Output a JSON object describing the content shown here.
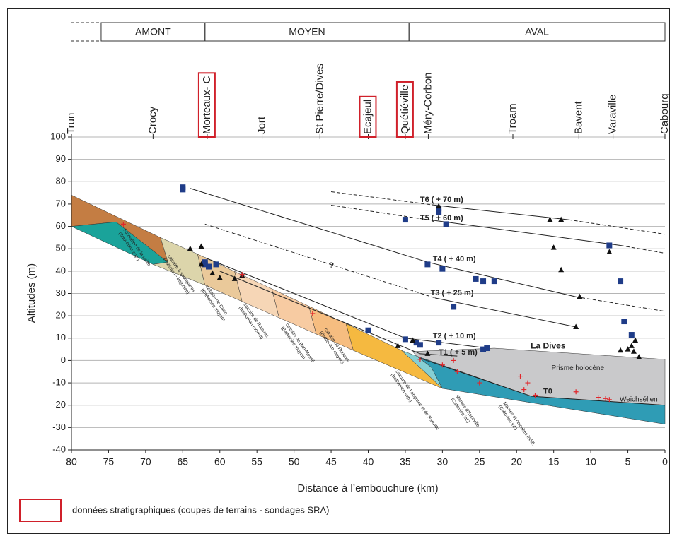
{
  "chart_data": {
    "type": "cross-section",
    "xlabel": "Distance à l’embouchure (km)",
    "ylabel": "Altitudes (m)",
    "xlim": [
      80,
      0
    ],
    "ylim": [
      -40,
      100
    ],
    "xticks": [
      80,
      75,
      70,
      65,
      60,
      55,
      50,
      45,
      40,
      35,
      30,
      25,
      20,
      15,
      10,
      5,
      0
    ],
    "yticks": [
      -40,
      -30,
      -20,
      -10,
      0,
      10,
      20,
      30,
      40,
      50,
      60,
      70,
      80,
      90,
      100
    ],
    "grid": true,
    "sections": [
      {
        "label": "AMONT",
        "from": 76,
        "to": 62
      },
      {
        "label": "MOYEN",
        "from": 62,
        "to": 34.5
      },
      {
        "label": "AVAL",
        "from": 34.5,
        "to": 0
      }
    ],
    "places": {
      "labels": [
        "Trun",
        "Crocy",
        "Morteaux- C",
        "Jort",
        "St Pierre/Dives",
        "Ecajeul",
        "Quétiéville",
        "Méry-Corbon",
        "Troarn",
        "Bavent",
        "Varaville",
        "Cabourg"
      ],
      "x": [
        80,
        69,
        61.7,
        54.3,
        46.5,
        40,
        35,
        31.9,
        20.5,
        11.6,
        7,
        0
      ],
      "stratigraphic_data": [
        false,
        false,
        true,
        false,
        false,
        true,
        true,
        false,
        false,
        false,
        false,
        false
      ]
    },
    "layers": [
      {
        "color": "#c47d43",
        "x": [
          80,
          80,
          74,
          67,
          68
        ],
        "y": [
          74,
          60,
          62,
          44,
          55
        ]
      },
      {
        "color": "#1aa39a",
        "x": [
          80,
          74,
          67,
          69
        ],
        "y": [
          60,
          62,
          44,
          43
        ]
      },
      {
        "color": "#dcd5ab",
        "x": [
          68,
          67,
          69,
          62,
          63
        ],
        "y": [
          55,
          44,
          43,
          33.7,
          47.6
        ]
      },
      {
        "color": "#eac99a",
        "x": [
          63,
          62,
          57,
          58
        ],
        "y": [
          47.6,
          33.7,
          26.4,
          39.8
        ]
      },
      {
        "color": "#f6d6b6",
        "x": [
          58,
          57,
          52,
          53
        ],
        "y": [
          39.8,
          26.4,
          19.1,
          32.1
        ]
      },
      {
        "color": "#f7cba2",
        "x": [
          53,
          52,
          47,
          48
        ],
        "y": [
          32.1,
          19.1,
          11.8,
          24.3
        ]
      },
      {
        "color": "#f6bd80",
        "x": [
          48,
          47,
          42,
          43
        ],
        "y": [
          24.3,
          11.8,
          4.5,
          16.5
        ]
      },
      {
        "color": "#f5b940",
        "x": [
          43,
          42,
          30,
          35.5
        ],
        "y": [
          16.5,
          4.5,
          -12.5,
          4.5
        ]
      },
      {
        "color": "#86cfd3",
        "x": [
          35.5,
          30,
          31.5,
          33.5
        ],
        "y": [
          4.5,
          -12.5,
          -3,
          2
        ]
      },
      {
        "color": "#2f9cb5",
        "x": [
          33.5,
          18,
          0,
          0,
          30,
          31.5
        ],
        "y": [
          2,
          -16,
          -20,
          -28.5,
          -12.5,
          -3
        ]
      },
      {
        "color": "#c9c9cb",
        "x": [
          34,
          23,
          0,
          0,
          18,
          33.5
        ],
        "y": [
          4,
          5.5,
          0.5,
          -20,
          -16,
          2
        ]
      }
    ],
    "terraces": [
      {
        "label": "T6 ( + 70 m)",
        "label_x": 33,
        "label_y": 71.8,
        "segments": [
          {
            "style": "dashed",
            "x": [
              45,
              31
            ],
            "y": [
              75.5,
              69.5
            ]
          },
          {
            "style": "solid",
            "x": [
              31,
              13
            ],
            "y": [
              69.5,
              63
            ]
          },
          {
            "style": "dashed",
            "x": [
              13,
              0
            ],
            "y": [
              63,
              56.5
            ]
          }
        ]
      },
      {
        "label": "T5 ( + 60 m)",
        "label_x": 33,
        "label_y": 63.7,
        "segments": [
          {
            "style": "dashed",
            "x": [
              45,
              33
            ],
            "y": [
              69.5,
              63.5
            ]
          },
          {
            "style": "solid",
            "x": [
              33,
              6
            ],
            "y": [
              63.5,
              51.5
            ]
          },
          {
            "style": "dashed",
            "x": [
              6,
              0
            ],
            "y": [
              51.5,
              48
            ]
          }
        ]
      },
      {
        "label": "T4 ( + 40 m)",
        "label_x": 31.3,
        "label_y": 45.3,
        "segments": [
          {
            "style": "solid",
            "x": [
              64,
              32,
              12
            ],
            "y": [
              77,
              44,
              28.5
            ]
          },
          {
            "style": "dashed",
            "x": [
              12,
              0
            ],
            "y": [
              28.5,
              22
            ]
          }
        ]
      },
      {
        "label": "T3 ( + 25 m)",
        "label_x": 31.6,
        "label_y": 30.2,
        "segments": [
          {
            "style": "dashed",
            "x": [
              62,
              31
            ],
            "y": [
              61,
              28
            ]
          },
          {
            "style": "solid",
            "x": [
              31,
              12
            ],
            "y": [
              28,
              15
            ]
          }
        ]
      },
      {
        "label": "T2 ( + 10 m)",
        "label_x": 31.3,
        "label_y": 10.9,
        "segments": [
          {
            "style": "solid",
            "x": [
              62,
              35,
              25
            ],
            "y": [
              46,
              10,
              6
            ]
          }
        ]
      },
      {
        "label": "T1 ( + 5 m)",
        "label_x": 30.5,
        "label_y": 3.6,
        "segments": [
          {
            "style": "solid",
            "x": [
              60,
              33,
              28
            ],
            "y": [
              40,
              3,
              2
            ]
          }
        ]
      },
      {
        "label": "T0",
        "label_x": 16.4,
        "label_y": -14,
        "segments": [
          {
            "style": "solid",
            "x": [
              33,
              18,
              0
            ],
            "y": [
              1,
              -16,
              -20
            ]
          }
        ]
      }
    ],
    "markers": [
      {
        "shape": "square",
        "color": "#1f3c88",
        "x": [
          65,
          65,
          62,
          61.5,
          62,
          60.5,
          40,
          35,
          33.5,
          33,
          30.5,
          35,
          30.5,
          30.5,
          29.5,
          32,
          30,
          28.5,
          25.5,
          24.5,
          23,
          24.5,
          24,
          7.5,
          6,
          5.5,
          4.5
        ],
        "y": [
          77.5,
          76.5,
          44,
          42,
          43,
          43,
          13.5,
          9.5,
          8,
          7,
          8,
          63,
          68,
          66.5,
          61,
          43,
          41,
          24,
          36.5,
          35.5,
          35.5,
          5,
          5.5,
          51.5,
          35.5,
          17.5,
          11.5
        ]
      },
      {
        "shape": "triangle",
        "color": "#111111",
        "x": [
          64,
          62.5,
          62.5,
          61,
          60,
          58,
          57,
          36,
          34,
          32,
          30.5,
          15.5,
          14,
          15,
          14,
          11.5,
          12,
          7.5,
          4,
          4.5,
          5,
          4.2,
          3.5,
          6
        ],
        "y": [
          50,
          51,
          43,
          39,
          37,
          36.5,
          38,
          6.5,
          9,
          3,
          69,
          63,
          63,
          50.5,
          40.5,
          28.5,
          15,
          48.5,
          9,
          6.5,
          5,
          4,
          1.5,
          4.5
        ]
      },
      {
        "shape": "cross",
        "color": "#e0262b",
        "x": [
          73,
          57,
          47.5,
          33,
          30,
          28.5,
          28,
          25,
          19.5,
          18.5,
          19,
          17.5,
          12,
          9,
          7.5,
          8
        ],
        "y": [
          61,
          38.5,
          21,
          0.5,
          -2,
          0,
          -5,
          -10,
          -7,
          -10,
          -13,
          -15.5,
          -14,
          -16.5,
          -17.5,
          -17
        ]
      }
    ],
    "formation_labels": [
      {
        "text": [
          "Formation de la Laize",
          "(Briovérien sup.)"
        ],
        "x": 72.9,
        "y": 58.7
      },
      {
        "text": [
          "calcaire à spongiaires",
          "(Aalénien - Bajocien)"
        ],
        "x": 66.9,
        "y": 47
      },
      {
        "text": [
          "calcaire de Caen",
          "(Bathonien moyen)"
        ],
        "x": 61.8,
        "y": 33.4
      },
      {
        "text": [
          "calcaire de Rouvres",
          "(Bathonien moyen)"
        ],
        "x": 56.7,
        "y": 25.4
      },
      {
        "text": [
          "calcaire de Ban-Mesnil",
          "(Bathonien moyen)"
        ],
        "x": 51,
        "y": 16.4
      },
      {
        "text": [
          "calcaire de Rouvres",
          "(Bathonien moyen)"
        ],
        "x": 45.8,
        "y": 14.3
      },
      {
        "text": [
          "calcaire de Langrune et de Ranville",
          "(Bathonien sup.)"
        ],
        "x": 36.2,
        "y": -4.6
      },
      {
        "text": [
          "Marnes d'Escoville",
          "(Callovien inf.)"
        ],
        "x": 28.1,
        "y": -15.6
      },
      {
        "text": [
          "Marnes et calcaires indiff.",
          "(Callovien inf.)"
        ],
        "x": 21.7,
        "y": -18.8
      }
    ],
    "annotations": [
      {
        "text": "La Dives",
        "x": 18.1,
        "y": 6.4,
        "bold": true
      },
      {
        "text": "Prisme holocène",
        "x": 15.3,
        "y": -3.4,
        "bold": false
      },
      {
        "text": "Weichsélien",
        "x": 6.1,
        "y": -17.5,
        "bold": false
      },
      {
        "text": "?",
        "x": 45.3,
        "y": 42.2,
        "bold": true
      }
    ],
    "legend": {
      "label": "données stratigraphiques (coupes de terrains - sondages SRA)",
      "color": "#d0202a"
    }
  }
}
